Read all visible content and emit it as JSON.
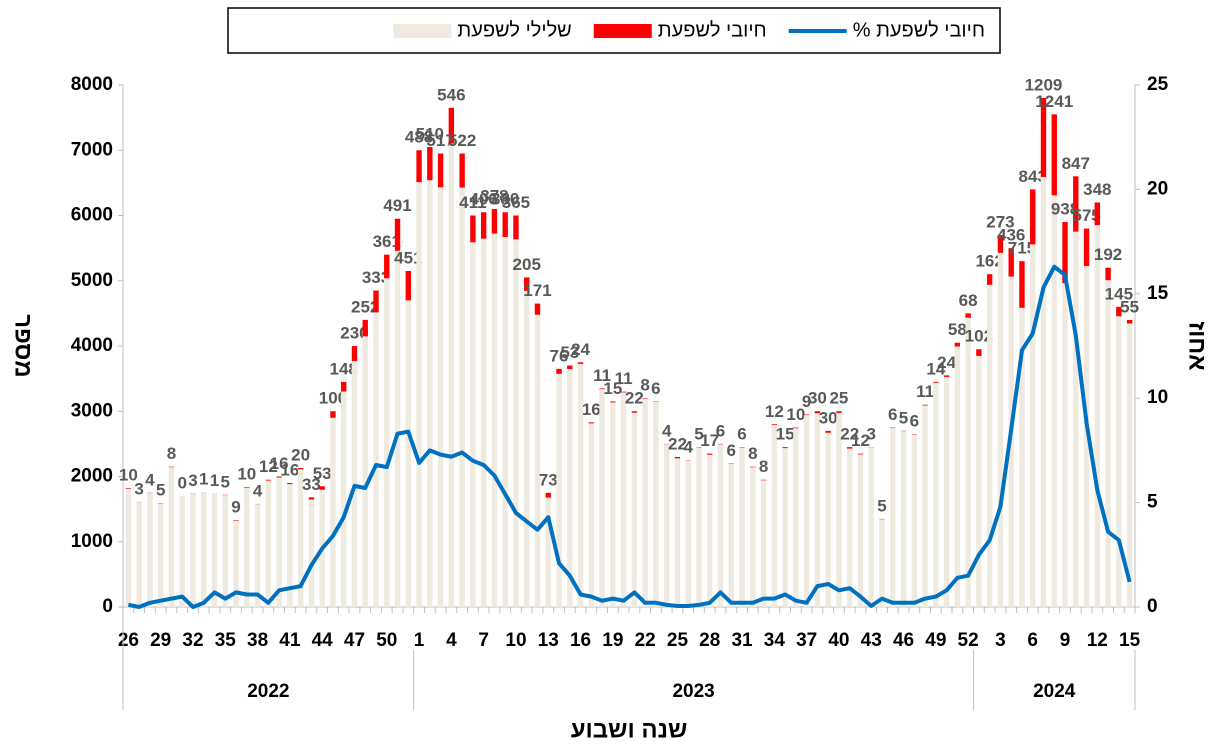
{
  "chart_data": {
    "type": "bar_line",
    "legend": "top",
    "x_title": "שנה ושבוע",
    "y_title": "מספר",
    "y2_title": "אחוז",
    "ylim": [
      0,
      8000
    ],
    "yticks": [
      0,
      1000,
      2000,
      3000,
      4000,
      5000,
      6000,
      7000,
      8000
    ],
    "y2lim": [
      0,
      25
    ],
    "y2ticks": [
      0,
      5,
      10,
      15,
      20,
      25
    ],
    "x_groups": [
      {
        "label": "2022",
        "size": 27
      },
      {
        "label": "2023",
        "size": 52
      },
      {
        "label": "2024",
        "size": 15
      }
    ],
    "categories": [
      "26",
      null,
      null,
      "29",
      null,
      null,
      "32",
      null,
      null,
      "35",
      null,
      null,
      "38",
      null,
      null,
      "41",
      null,
      null,
      "44",
      null,
      null,
      "47",
      null,
      null,
      "50",
      null,
      null,
      "1",
      null,
      null,
      "4",
      null,
      null,
      "7",
      null,
      null,
      "10",
      null,
      null,
      "13",
      null,
      null,
      "16",
      null,
      null,
      "19",
      null,
      null,
      "22",
      null,
      null,
      "25",
      null,
      null,
      "28",
      null,
      null,
      "31",
      null,
      null,
      "34",
      null,
      null,
      "37",
      null,
      null,
      "40",
      null,
      null,
      "43",
      null,
      null,
      "46",
      null,
      null,
      "49",
      null,
      null,
      "52",
      null,
      null,
      "3",
      null,
      null,
      "6",
      null,
      null,
      "9",
      null,
      null,
      "12",
      null,
      null,
      "15"
    ],
    "series": [
      {
        "name": "שלילי לשפעת",
        "color": "#eeeae0",
        "kind": "bar",
        "values": [
          1810,
          1607,
          1746,
          1585,
          2142,
          1700,
          1737,
          1759,
          1739,
          1715,
          1321,
          1830,
          1576,
          1938,
          1984,
          1884,
          2110,
          1647,
          1797,
          2900,
          3302,
          3770,
          4148,
          4517,
          5039,
          5459,
          4699,
          6512,
          6540,
          6433,
          7104,
          6428,
          5589,
          5644,
          5722,
          5670,
          5635,
          4845,
          4479,
          1677,
          3574,
          3647,
          3726,
          2814,
          3339,
          3135,
          3289,
          2978,
          3192,
          3144,
          2496,
          2278,
          2246,
          2445,
          2333,
          2494,
          2194,
          2444,
          2142,
          1942,
          2788,
          2435,
          2740,
          2941,
          2970,
          2670,
          2975,
          2428,
          2338,
          2447,
          1345,
          2744,
          2695,
          2644,
          3089,
          3436,
          3526,
          3992,
          4432,
          3848,
          4938,
          5427,
          5064,
          4585,
          5557,
          6591,
          6309,
          4962,
          5753,
          5225,
          5852,
          5008,
          4455,
          4345
        ]
      },
      {
        "name": "חיובי לשפעת",
        "color": "#ff0000",
        "kind": "bar",
        "values": [
          10,
          3,
          4,
          5,
          8,
          0,
          3,
          1,
          1,
          5,
          9,
          10,
          4,
          12,
          16,
          16,
          20,
          33,
          53,
          100,
          148,
          230,
          252,
          333,
          361,
          491,
          451,
          488,
          510,
          517,
          546,
          522,
          411,
          406,
          378,
          380,
          365,
          205,
          171,
          73,
          76,
          53,
          24,
          16,
          11,
          15,
          11,
          22,
          8,
          6,
          4,
          22,
          4,
          5,
          17,
          6,
          6,
          6,
          8,
          8,
          12,
          15,
          10,
          9,
          30,
          30,
          25,
          22,
          12,
          3,
          5,
          6,
          5,
          6,
          11,
          14,
          24,
          58,
          68,
          102,
          162,
          273,
          436,
          715,
          843,
          1209,
          1241,
          938,
          847,
          575,
          348,
          192,
          145,
          55
        ]
      },
      {
        "name": "% חיובי לשפעת",
        "color": "#0070c0",
        "kind": "line",
        "axis": "y2",
        "values": [
          0.1,
          0,
          0.2,
          0.3,
          0.4,
          0.5,
          0,
          0.2,
          0.7,
          0.4,
          0.7,
          0.6,
          0.6,
          0.2,
          0.8,
          0.9,
          1.0,
          2.0,
          2.8,
          3.4,
          4.3,
          5.8,
          5.7,
          6.8,
          6.7,
          8.3,
          8.4,
          6.9,
          7.5,
          7.3,
          7.2,
          7.4,
          7.0,
          6.8,
          6.3,
          5.4,
          4.5,
          4.1,
          3.7,
          4.3,
          2.1,
          1.5,
          0.6,
          0.5,
          0.3,
          0.4,
          0.3,
          0.7,
          0.2,
          0.2,
          0.1,
          0.05,
          0.05,
          0.1,
          0.2,
          0.7,
          0.2,
          0.2,
          0.2,
          0.4,
          0.4,
          0.6,
          0.3,
          0.2,
          1.0,
          1.1,
          0.8,
          0.9,
          0.5,
          0.05,
          0.4,
          0.2,
          0.2,
          0.2,
          0.4,
          0.5,
          0.8,
          1.4,
          1.5,
          2.5,
          3.2,
          4.8,
          8.5,
          12.3,
          13.1,
          15.3,
          16.3,
          15.9,
          13.0,
          8.8,
          5.6,
          3.6,
          3.2,
          1.2
        ]
      }
    ]
  }
}
